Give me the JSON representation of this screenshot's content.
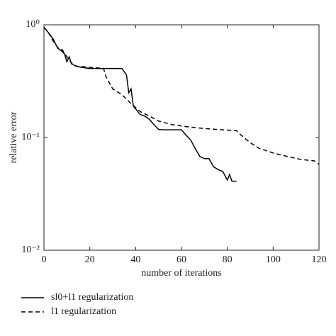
{
  "chart_data": {
    "type": "line",
    "xlabel": "number of iterations",
    "ylabel": "relative error",
    "xlim": [
      0,
      120
    ],
    "xticks": [
      0,
      20,
      40,
      60,
      80,
      100,
      120
    ],
    "ylim": [
      0.01,
      1
    ],
    "ylog": true,
    "yticks": [
      {
        "value": 1,
        "label": "10⁰"
      },
      {
        "value": 0.1,
        "label": "10⁻¹"
      },
      {
        "value": 0.01,
        "label": "10⁻²"
      }
    ],
    "legend": "bottom",
    "series": [
      {
        "name": "sl0+l1 regularization",
        "color": "#000000",
        "style": "solid",
        "x": [
          0,
          2,
          4,
          6,
          8,
          9,
          10,
          11,
          12,
          14,
          16,
          20,
          30,
          34,
          36,
          37,
          38,
          39,
          42,
          44,
          46,
          48,
          50,
          52,
          60,
          62,
          64,
          66,
          68,
          70,
          72,
          74,
          76,
          78,
          80,
          81,
          82,
          84
        ],
        "values": [
          0.95,
          0.85,
          0.75,
          0.62,
          0.58,
          0.55,
          0.47,
          0.52,
          0.45,
          0.43,
          0.42,
          0.41,
          0.41,
          0.41,
          0.36,
          0.25,
          0.27,
          0.19,
          0.16,
          0.155,
          0.145,
          0.13,
          0.118,
          0.117,
          0.117,
          0.105,
          0.095,
          0.08,
          0.068,
          0.065,
          0.065,
          0.055,
          0.052,
          0.05,
          0.042,
          0.047,
          0.041,
          0.041
        ]
      },
      {
        "name": "l1 regularization",
        "color": "#000000",
        "style": "dashed",
        "x": [
          0,
          2,
          4,
          6,
          8,
          10,
          12,
          14,
          20,
          26,
          27,
          28,
          30,
          34,
          38,
          42,
          46,
          50,
          56,
          62,
          70,
          84,
          86,
          90,
          94,
          100,
          106,
          112,
          118,
          120
        ],
        "values": [
          0.95,
          0.85,
          0.72,
          0.63,
          0.6,
          0.52,
          0.46,
          0.43,
          0.42,
          0.41,
          0.35,
          0.32,
          0.27,
          0.24,
          0.2,
          0.17,
          0.155,
          0.14,
          0.13,
          0.125,
          0.12,
          0.115,
          0.105,
          0.09,
          0.08,
          0.073,
          0.068,
          0.064,
          0.062,
          0.058
        ]
      }
    ]
  }
}
